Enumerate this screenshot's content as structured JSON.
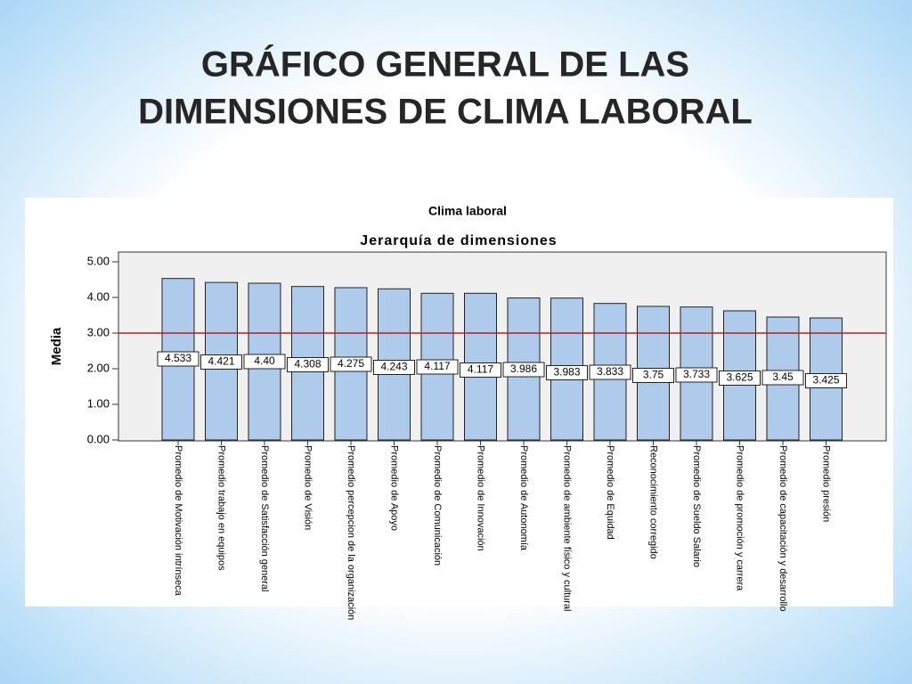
{
  "slide_title": [
    "GRÁFICO GENERAL DE LAS",
    "DIMENSIONES DE CLIMA LABORAL"
  ],
  "chart_data": {
    "type": "bar",
    "title": "Clima laboral",
    "subtitle": "Jerarquía de dimensiones",
    "y_label": "Media",
    "categories": [
      "Promedio de Motivación intrínseca",
      "Promedio trabajo en equipos",
      "Promedio de Satisfacción general",
      "Promedio de Visión",
      "Promedio percepcion de la organización",
      "Promedio de Apoyo",
      "Promedio de Comunicación",
      "Promedio de Innovación",
      "Promedio de Autonomía",
      "Promedio de ambiente físico y cultural",
      "Promedio de Equidad",
      "Reconocimiento corregido",
      "Promedio de Sueldo Salario",
      "Promedio de promoción y carrera",
      "Promedio de capacitación y desarrollo",
      "Promedio presión"
    ],
    "values": [
      4.533,
      4.421,
      4.4,
      4.308,
      4.275,
      4.243,
      4.117,
      4.117,
      3.986,
      3.983,
      3.833,
      3.75,
      3.733,
      3.625,
      3.45,
      3.425
    ],
    "value_labels": [
      "4.533",
      "4.421",
      "4.40",
      "4.308",
      "4.275",
      "4.243",
      "4.117",
      "4.117",
      "3.986",
      "3.983",
      "3.833",
      "3.75",
      "3.733",
      "3.625",
      "3.45",
      "3.425"
    ],
    "color": "#aecbeb",
    "ylim": [
      0,
      5
    ],
    "yticks": [
      {
        "value": 0,
        "label": "0.00"
      },
      {
        "value": 1,
        "label": "1.00"
      },
      {
        "value": 2,
        "label": "2.00"
      },
      {
        "value": 3,
        "label": "3.00"
      },
      {
        "value": 4,
        "label": "4.00"
      },
      {
        "value": 5,
        "label": "5.00"
      }
    ],
    "reference_line": {
      "value": 3,
      "color": "#b22222"
    }
  }
}
